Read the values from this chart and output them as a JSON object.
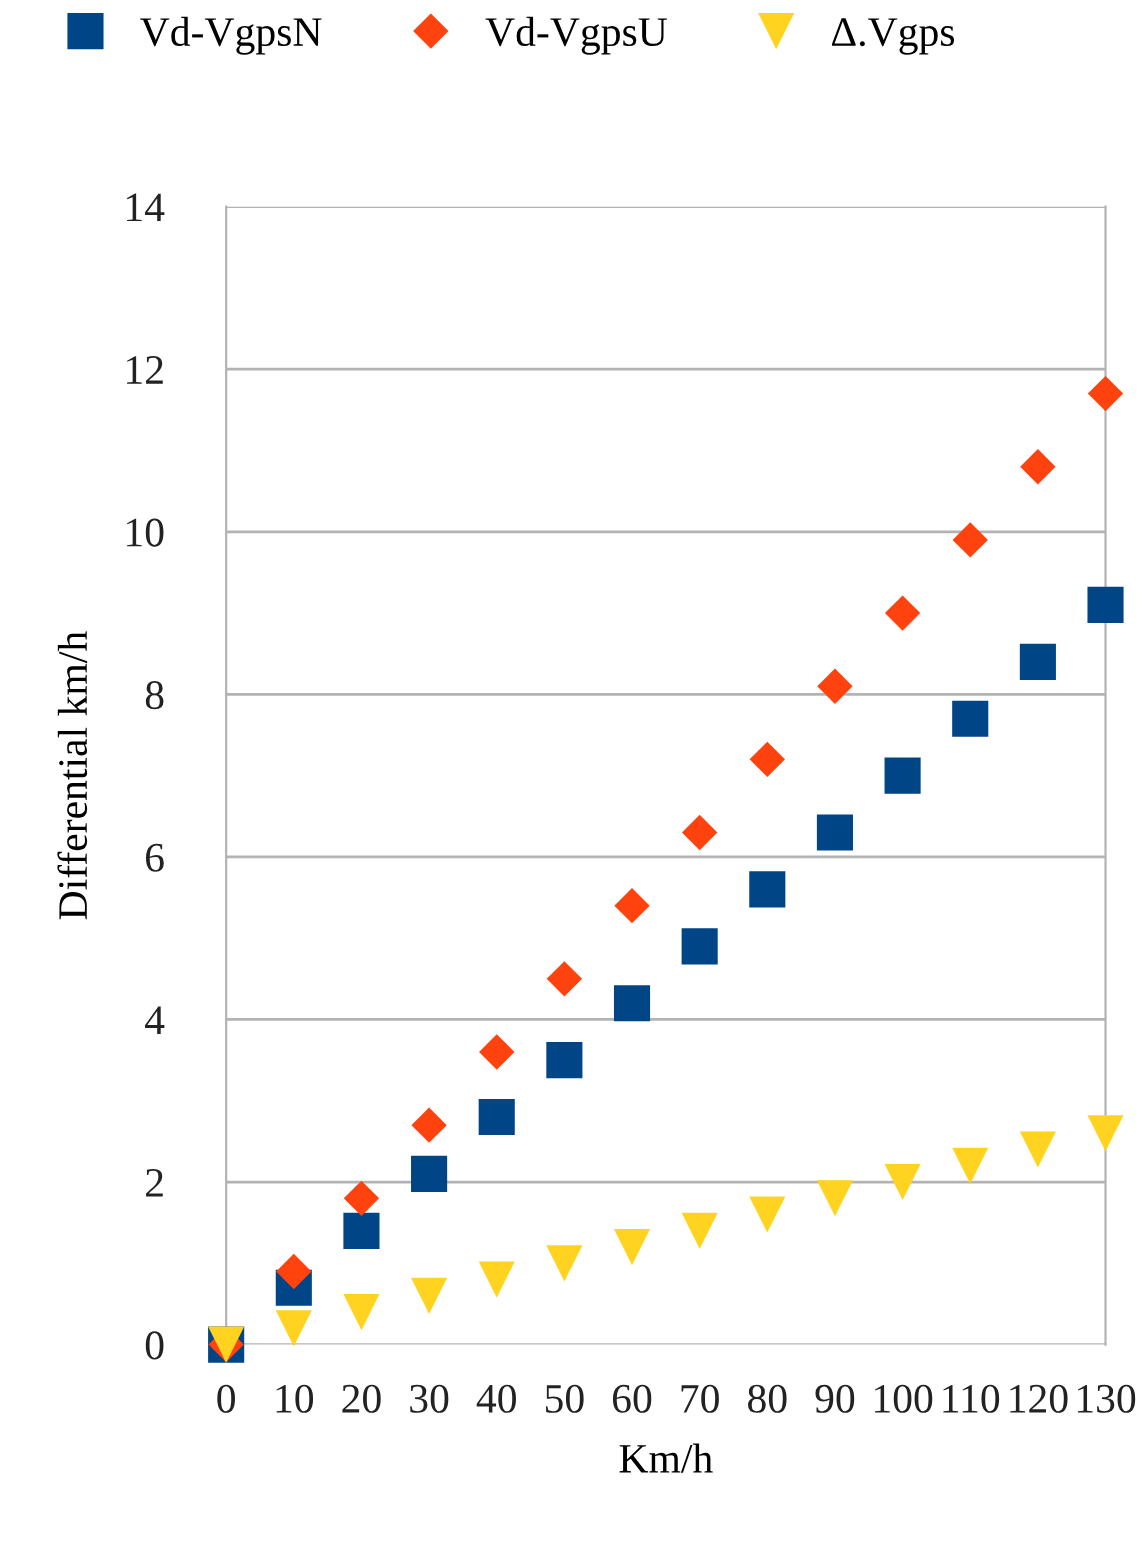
{
  "chart_data": {
    "type": "scatter",
    "xlabel": "Km/h",
    "ylabel": "Differential km/h",
    "x": [
      0,
      10,
      20,
      30,
      40,
      50,
      60,
      70,
      80,
      90,
      100,
      110,
      120,
      130
    ],
    "series": [
      {
        "name": "Vd-VgpsN",
        "color": "#004586",
        "marker": "square",
        "values": [
          0,
          0.7,
          1.4,
          2.1,
          2.8,
          3.5,
          4.2,
          4.9,
          5.6,
          6.3,
          7.0,
          7.7,
          8.4,
          9.1
        ]
      },
      {
        "name": "Vd-VgpsU",
        "color": "#ff420e",
        "marker": "diamond",
        "values": [
          0,
          0.9,
          1.8,
          2.7,
          3.6,
          4.5,
          5.4,
          6.3,
          7.2,
          8.1,
          9.0,
          9.9,
          10.8,
          11.7
        ]
      },
      {
        "name": "Δ.Vgps",
        "color": "#ffd320",
        "marker": "triangle",
        "values": [
          0,
          0.2,
          0.4,
          0.6,
          0.8,
          1.0,
          1.2,
          1.4,
          1.6,
          1.8,
          2.0,
          2.2,
          2.4,
          2.6
        ]
      }
    ],
    "xlim": [
      0,
      130
    ],
    "xticks": [
      0,
      10,
      20,
      30,
      40,
      50,
      60,
      70,
      80,
      90,
      100,
      110,
      120,
      130
    ],
    "ylim": [
      0,
      14
    ],
    "yticks": [
      0,
      2,
      4,
      6,
      8,
      10,
      12,
      14
    ],
    "grid": "y",
    "legend": "top"
  }
}
